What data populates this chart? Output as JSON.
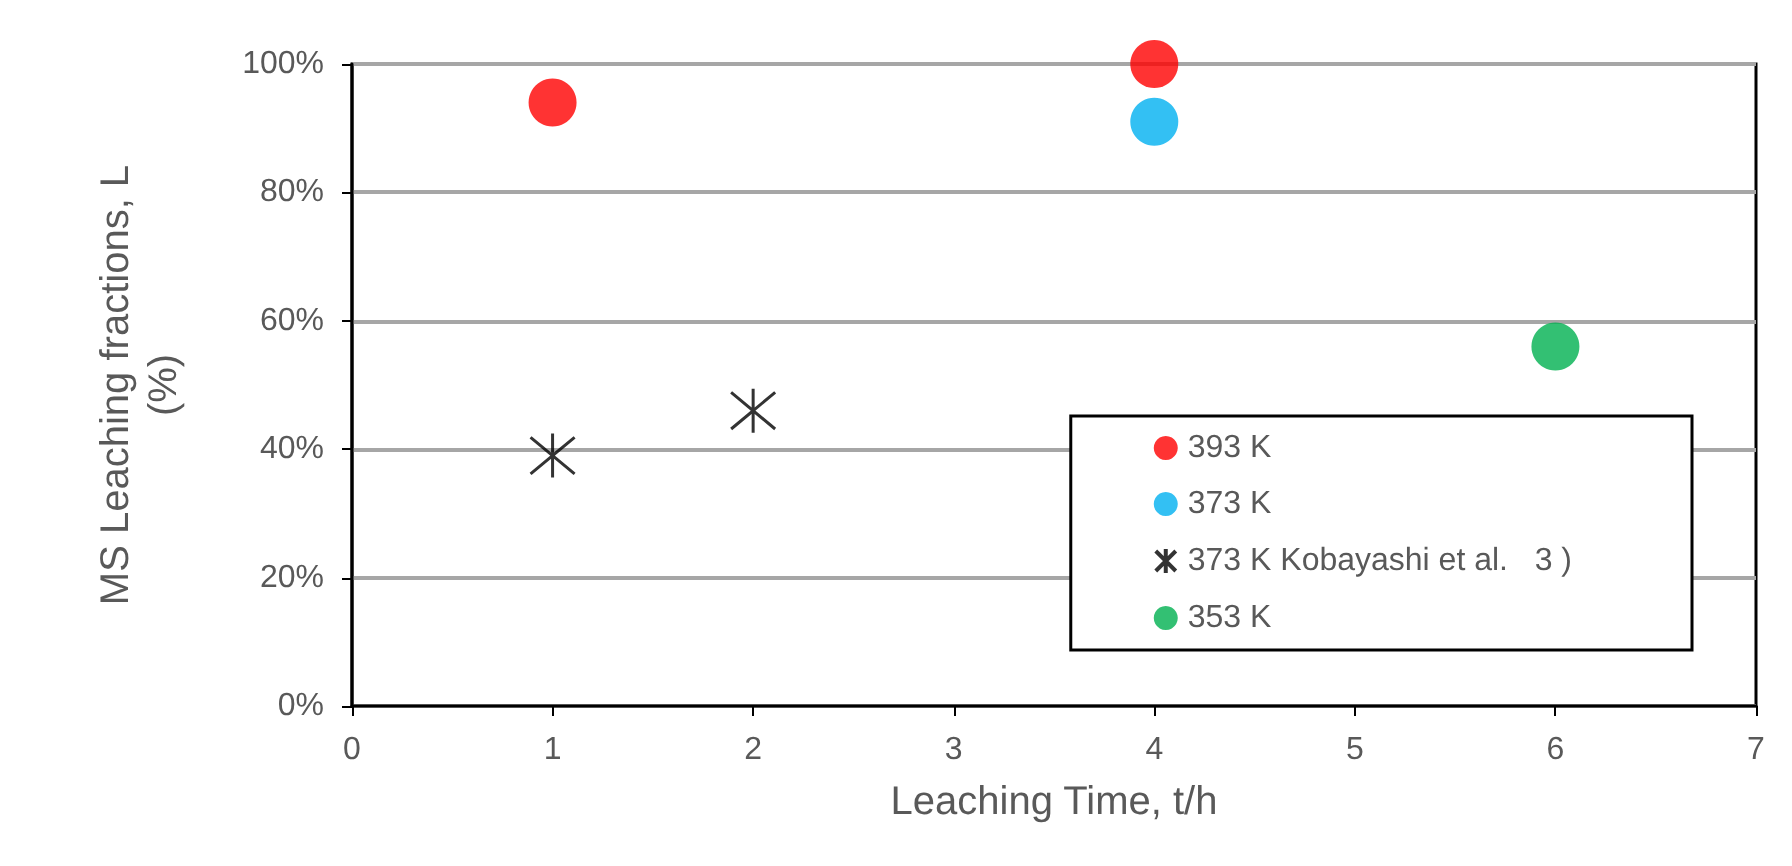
{
  "chart_data": {
    "type": "scatter",
    "xlabel": "Leaching Time, t/h",
    "ylabel": "MS Leaching fractions, L\n(%)",
    "xlim": [
      0,
      7
    ],
    "xticks": [
      0,
      1,
      2,
      3,
      4,
      5,
      6,
      7
    ],
    "ylim": [
      0,
      100
    ],
    "yticks": [
      {
        "value": 0,
        "label": "0%"
      },
      {
        "value": 20,
        "label": "20%"
      },
      {
        "value": 40,
        "label": "40%"
      },
      {
        "value": 60,
        "label": "60%"
      },
      {
        "value": 80,
        "label": "80%"
      },
      {
        "value": 100,
        "label": "100%"
      }
    ],
    "grid": "y",
    "legend": "bottom right",
    "marker": "circle",
    "series": [
      {
        "name": "393 K",
        "color": "#ff0000",
        "x": [
          1,
          4
        ],
        "values": [
          94,
          100
        ]
      },
      {
        "name": "373 K",
        "color": "#00b0f0",
        "x": [
          4
        ],
        "values": [
          91
        ]
      },
      {
        "name": "373 K Kobayashi et al.   3 )",
        "color": "#000000",
        "marker": "cross",
        "x": [
          1,
          2
        ],
        "values": [
          39,
          46
        ]
      },
      {
        "name": "353 K",
        "color": "#00b050",
        "x": [
          6
        ],
        "values": [
          56
        ]
      }
    ]
  }
}
